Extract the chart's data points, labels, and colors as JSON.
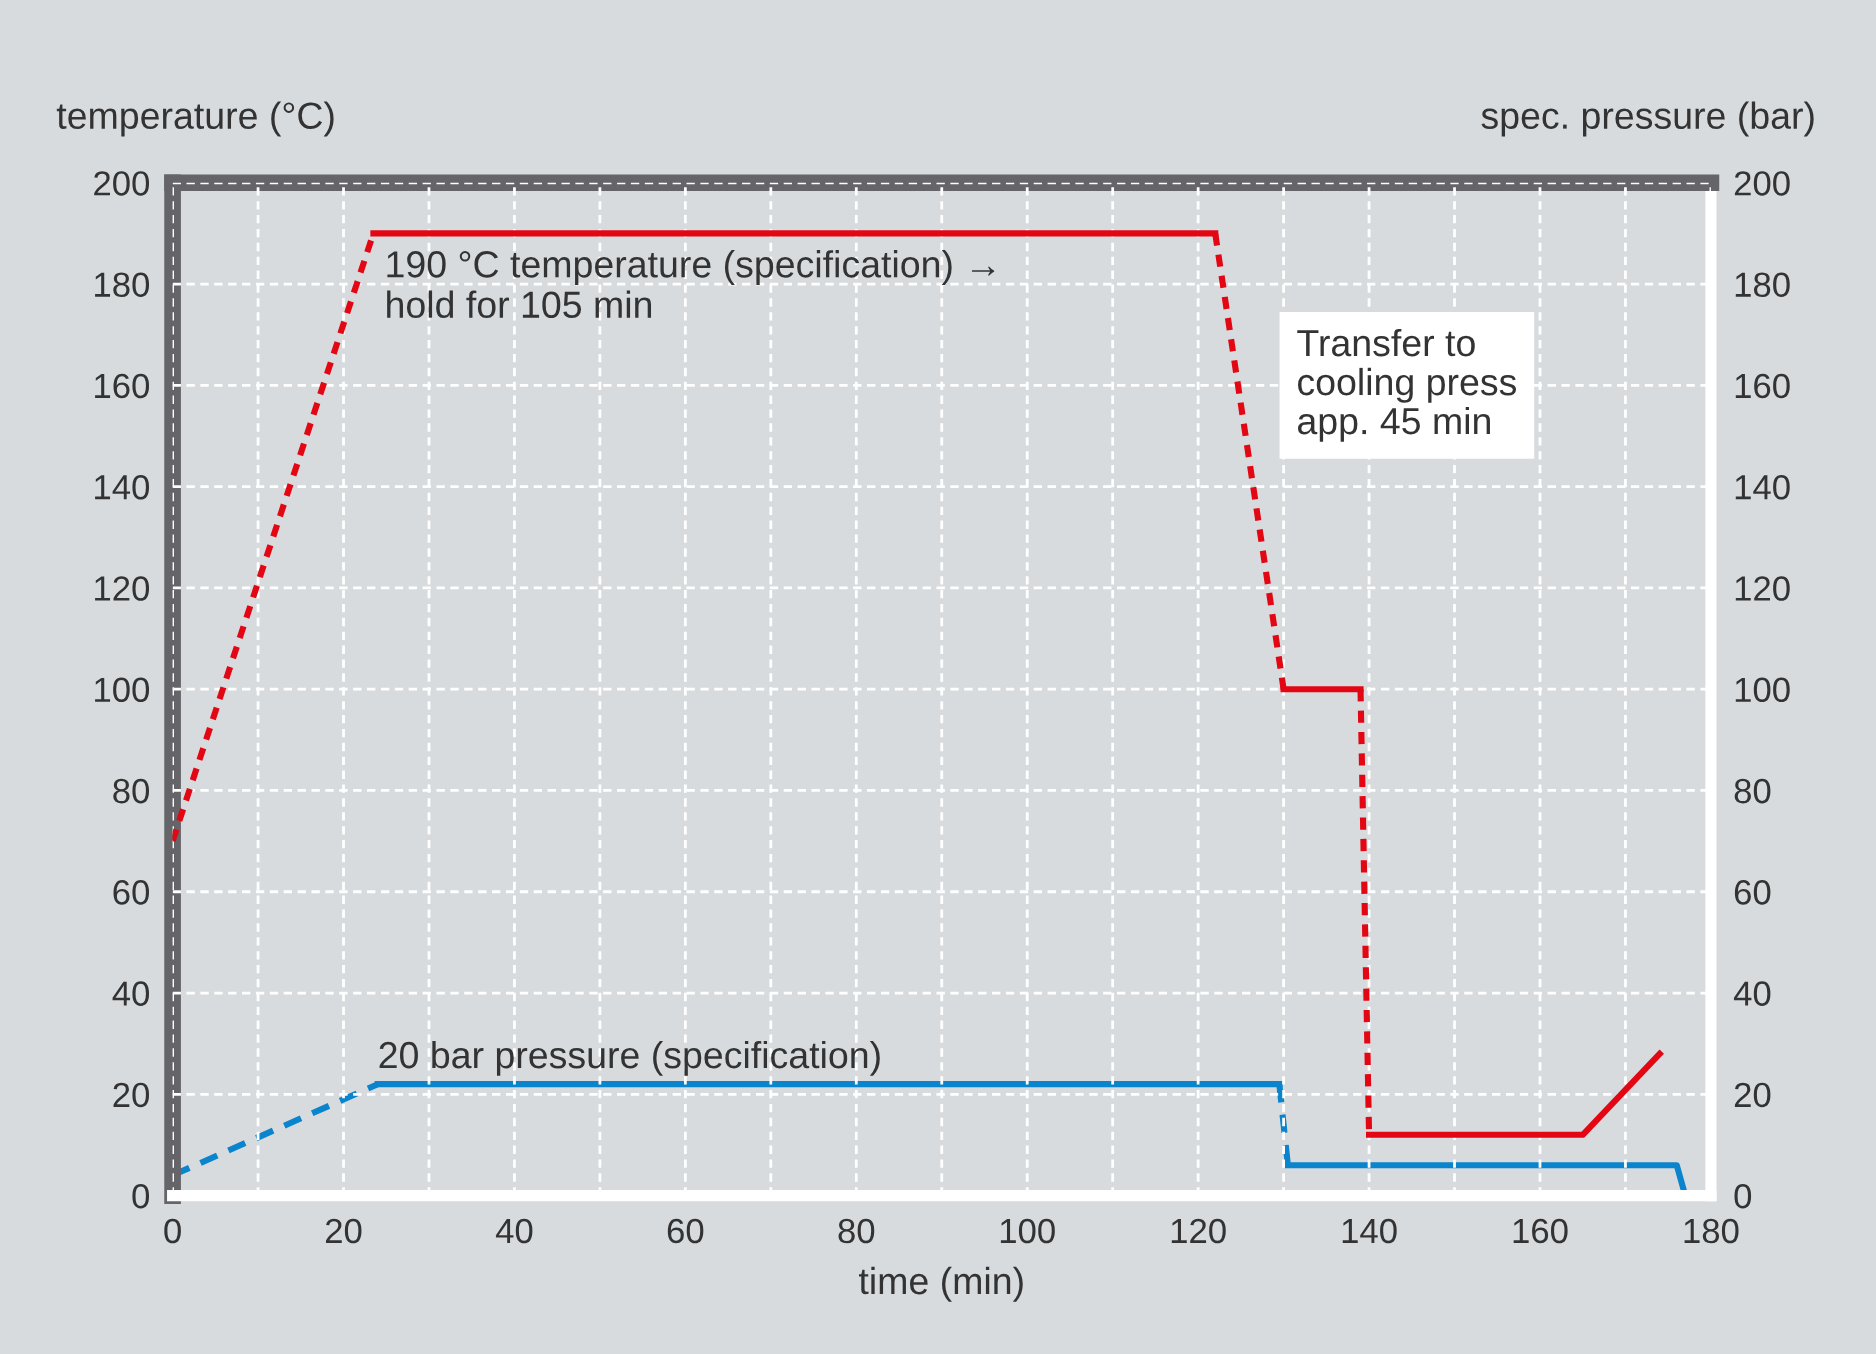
{
  "chart_data": {
    "type": "line",
    "xlabel": "time (min)",
    "ylabel": "temperature (°C)",
    "y2label": "spec. pressure (bar)",
    "xlim": [
      0,
      180
    ],
    "ylim": [
      0,
      200
    ],
    "y2lim": [
      0,
      200
    ],
    "xticks": [
      0,
      {
        "value": 10,
        "label": null
      },
      20,
      {
        "value": 30,
        "label": null
      },
      40,
      {
        "value": 50,
        "label": null
      },
      60,
      {
        "value": 70,
        "label": null
      },
      80,
      {
        "value": 90,
        "label": null
      },
      100,
      {
        "value": 110,
        "label": null
      },
      120,
      {
        "value": 130,
        "label": null
      },
      140,
      {
        "value": 150,
        "label": null
      },
      160,
      {
        "value": 170,
        "label": null
      },
      180
    ],
    "yticks": [
      0,
      20,
      40,
      60,
      80,
      100,
      120,
      140,
      160,
      180,
      200
    ],
    "y2ticks": [
      0,
      20,
      40,
      60,
      80,
      100,
      120,
      140,
      160,
      180,
      200
    ],
    "grid": true,
    "marker": "none",
    "series": [
      {
        "color": "#e30613",
        "line_style": "dotted",
        "x": [
          0,
          23.5
        ],
        "values": [
          70,
          190
        ]
      },
      {
        "color": "#e30613",
        "line_style": "solid",
        "x": [
          23.5,
          122
        ],
        "values": [
          190,
          190
        ]
      },
      {
        "color": "#e30613",
        "line_style": "dotted",
        "x": [
          122,
          130
        ],
        "values": [
          190,
          100
        ]
      },
      {
        "color": "#e30613",
        "line_style": "solid",
        "x": [
          130,
          139
        ],
        "values": [
          100,
          100
        ]
      },
      {
        "color": "#e30613",
        "line_style": "dotted",
        "x": [
          139,
          140
        ],
        "values": [
          100,
          12
        ]
      },
      {
        "color": "#e30613",
        "line_style": "solid",
        "x": [
          140,
          165,
          174
        ],
        "values": [
          12,
          12,
          28
        ]
      },
      {
        "color": "#0a84cc",
        "axis": "y2",
        "line_style": "dashed",
        "x": [
          0,
          24
        ],
        "values": [
          4,
          22
        ]
      },
      {
        "color": "#0a84cc",
        "axis": "y2",
        "line_style": "solid",
        "x": [
          24,
          129.5
        ],
        "values": [
          22,
          22
        ]
      },
      {
        "color": "#0a84cc",
        "axis": "y2",
        "line_style": "dashed",
        "x": [
          129.5,
          130.5
        ],
        "values": [
          22,
          6
        ]
      },
      {
        "color": "#0a84cc",
        "axis": "y2",
        "line_style": "solid",
        "x": [
          130.5,
          176,
          177
        ],
        "values": [
          6,
          6,
          0
        ]
      }
    ],
    "annotations": [
      {
        "text": "190 °C temperature (specification) →\nhold for 105 min",
        "x": 23.5,
        "y": 190
      },
      {
        "text": "20 bar pressure (specification)",
        "x": 24,
        "y": 22
      },
      "Transfer to\ncooling press\napp. 45 min"
    ]
  }
}
